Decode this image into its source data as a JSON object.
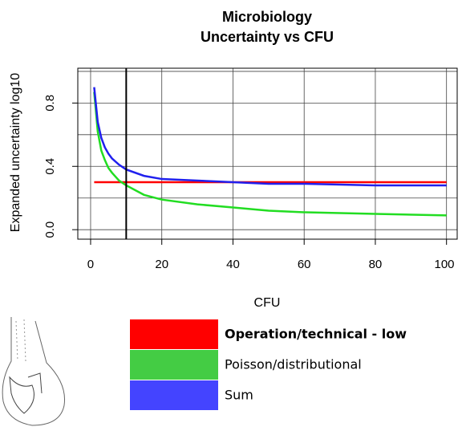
{
  "chart_data": {
    "type": "line",
    "title": [
      "Microbiology",
      "Uncertainty vs CFU"
    ],
    "x_label": "CFU",
    "y_label": "Expanded uncertainty log10",
    "x": [
      1,
      2,
      3,
      4,
      5,
      6,
      8,
      10,
      15,
      20,
      30,
      40,
      50,
      60,
      80,
      100
    ],
    "series": [
      {
        "name": "Operation/technical - low",
        "color": "#ff0000",
        "values": [
          0.3,
          0.3,
          0.3,
          0.3,
          0.3,
          0.3,
          0.3,
          0.3,
          0.3,
          0.3,
          0.3,
          0.3,
          0.3,
          0.3,
          0.3,
          0.3
        ]
      },
      {
        "name": "Poisson/distributional",
        "color": "#22dd22",
        "values": [
          0.87,
          0.62,
          0.5,
          0.44,
          0.39,
          0.36,
          0.31,
          0.28,
          0.22,
          0.19,
          0.16,
          0.14,
          0.12,
          0.11,
          0.1,
          0.09
        ]
      },
      {
        "name": "Sum",
        "color": "#2020ee",
        "values": [
          0.9,
          0.68,
          0.58,
          0.52,
          0.48,
          0.45,
          0.41,
          0.38,
          0.34,
          0.32,
          0.31,
          0.3,
          0.29,
          0.29,
          0.28,
          0.28
        ]
      }
    ],
    "legend_colors": [
      "#ff0000",
      "#44cc44",
      "#4444ff"
    ],
    "vline": 10,
    "xlim": [
      -3.6,
      103
    ],
    "ylim": [
      -0.06,
      1.02
    ],
    "xticks": [
      0,
      20,
      40,
      60,
      80,
      100
    ],
    "yticks": [
      {
        "value": 0,
        "label": "0.0"
      },
      {
        "value": 0.2,
        "label": null
      },
      {
        "value": 0.4,
        "label": "0.4"
      },
      {
        "value": 0.6,
        "label": null
      },
      {
        "value": 0.8,
        "label": "0.8"
      },
      {
        "value": 1.0,
        "label": null
      }
    ],
    "grid": true
  }
}
